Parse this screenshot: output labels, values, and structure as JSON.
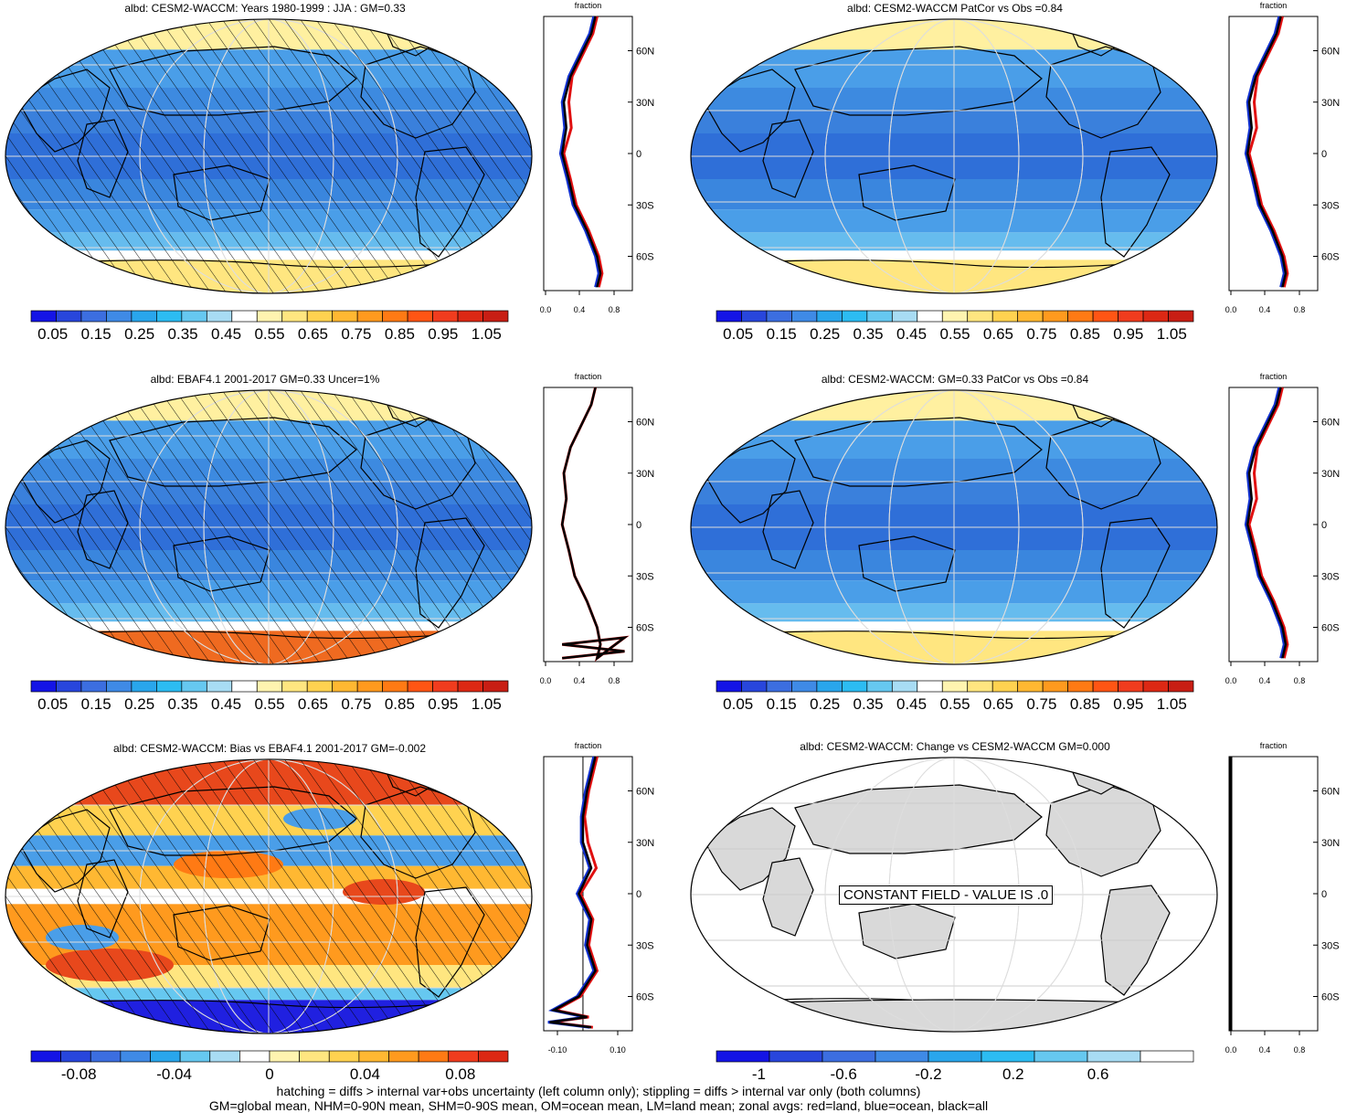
{
  "panels": [
    {
      "title": "albd: CESM2-WACCM: Years 1980-1999 : JJA : GM=0.33",
      "style": "clim",
      "hatch": true,
      "zonal": "clim"
    },
    {
      "title": "albd: CESM2-WACCM PatCor vs Obs =0.84",
      "style": "clim",
      "hatch": false,
      "zonal": "clim"
    },
    {
      "title": "albd: EBAF4.1 2001-2017 GM=0.33 Uncer=1%",
      "style": "clim",
      "hatch": true,
      "zonal": "obs"
    },
    {
      "title": "albd: CESM2-WACCM: GM=0.33 PatCor vs Obs =0.84",
      "style": "clim",
      "hatch": false,
      "zonal": "clim"
    },
    {
      "title": "albd: CESM2-WACCM: Bias vs EBAF4.1 2001-2017 GM=-0.002",
      "style": "bias",
      "hatch": true,
      "zonal": "bias"
    },
    {
      "title": "albd: CESM2-WACCM: Change vs CESM2-WACCM GM=0.000",
      "style": "const",
      "hatch": false,
      "zonal": "const"
    }
  ],
  "constant_field_label": "CONSTANT FIELD - VALUE IS .0",
  "zonal": {
    "title": "fraction",
    "lat_labels": [
      "60N",
      "30N",
      "0",
      "30S",
      "60S"
    ],
    "x_ticks_abs": [
      "0.0",
      "0.4",
      "0.8"
    ],
    "x_ticks_bias": [
      "-0.10",
      "0.10"
    ]
  },
  "colorbars": {
    "clim": {
      "labels": [
        "0.05",
        "0.15",
        "0.25",
        "0.35",
        "0.45",
        "0.55",
        "0.65",
        "0.75",
        "0.85",
        "0.95",
        "1.05"
      ],
      "colors": [
        "#1414e6",
        "#2846dc",
        "#3c6ee0",
        "#3f8ae6",
        "#29a6ec",
        "#2cbcf2",
        "#66c8f0",
        "#a8dcf4",
        "#ffffff",
        "#fff4b0",
        "#ffe680",
        "#ffd250",
        "#ffb832",
        "#ff9a1e",
        "#ff7a14",
        "#ff5514",
        "#f03c1e",
        "#dc2814",
        "#c81e14"
      ]
    },
    "bias": {
      "labels": [
        "-0.08",
        "-0.04",
        "0",
        "0.04",
        "0.08"
      ],
      "colors": [
        "#1414e6",
        "#2846dc",
        "#3c6ee0",
        "#3f8ae6",
        "#29a6ec",
        "#66c8f0",
        "#a8dcf4",
        "#ffffff",
        "#fff4b0",
        "#ffe680",
        "#ffd250",
        "#ffb832",
        "#ff9a1e",
        "#ff7a14",
        "#f03c1e",
        "#dc2814"
      ]
    },
    "change": {
      "labels": [
        "-1",
        "-0.6",
        "-0.2",
        "0.2",
        "0.6"
      ],
      "colors": [
        "#1414e6",
        "#2846dc",
        "#3c6ee0",
        "#3f8ae6",
        "#29a6ec",
        "#2cbcf2",
        "#66c8f0",
        "#a8dcf4",
        "#ffffff"
      ]
    }
  },
  "footer": {
    "line1": "hatching = diffs > internal var+obs uncertainty (left column only); stippling = diffs > internal var only (both columns)",
    "line2": "GM=global mean, NHM=0-90N mean, SHM=0-90S mean, OM=ocean mean, LM=land mean; zonal avgs: red=land, blue=ocean, black=all"
  }
}
